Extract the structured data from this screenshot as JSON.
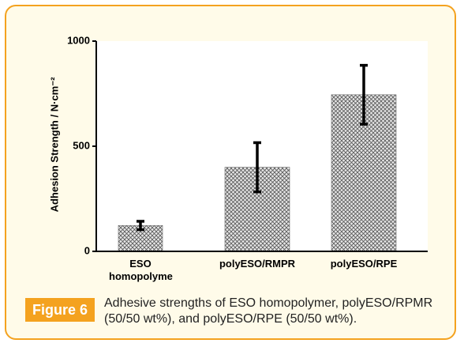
{
  "chart_data": {
    "type": "bar",
    "y_label": "Adhesion Strength / N·cm⁻²",
    "categories": [
      "ESO homopolyme",
      "polyESO/RMPR",
      "polyESO/RPE"
    ],
    "values": [
      123,
      400,
      745
    ],
    "errors": [
      20,
      117,
      140
    ],
    "ylim": [
      0,
      1000
    ],
    "yticks": [
      0,
      500,
      1000
    ],
    "grid": false
  },
  "caption": {
    "label": "Figure 6",
    "text": "Adhesive strengths of ESO homopolymer, polyESO/RPMR (50/50 wt%), and polyESO/RPE (50/50 wt%)."
  }
}
